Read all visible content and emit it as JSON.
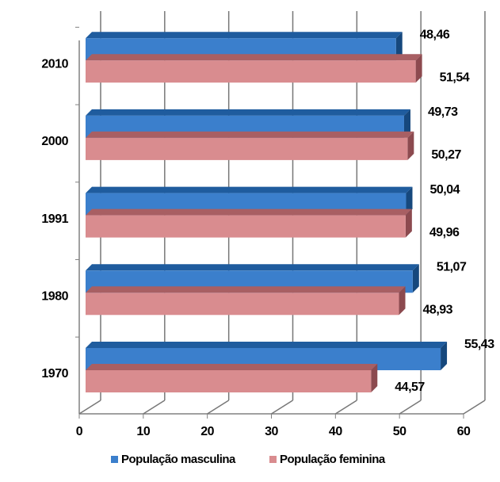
{
  "chart_data": {
    "type": "bar3d_horizontal",
    "categories": [
      "1970",
      "1980",
      "1991",
      "2000",
      "2010"
    ],
    "series": [
      {
        "name": "População masculina",
        "color": "#3b7fcc",
        "values": [
          55.43,
          51.07,
          50.04,
          49.73,
          48.46
        ],
        "value_labels": [
          "55,43",
          "51,07",
          "50,04",
          "49,73",
          "48,46"
        ]
      },
      {
        "name": "População feminina",
        "color": "#d98c8f",
        "values": [
          44.57,
          48.93,
          49.96,
          50.27,
          51.54
        ],
        "value_labels": [
          "44,57",
          "48,93",
          "49,96",
          "50,27",
          "51,54"
        ]
      }
    ],
    "xlim": [
      0,
      60
    ],
    "xticks": [
      0,
      10,
      20,
      30,
      40,
      50,
      60
    ],
    "grid": true,
    "legend": "bottom"
  }
}
